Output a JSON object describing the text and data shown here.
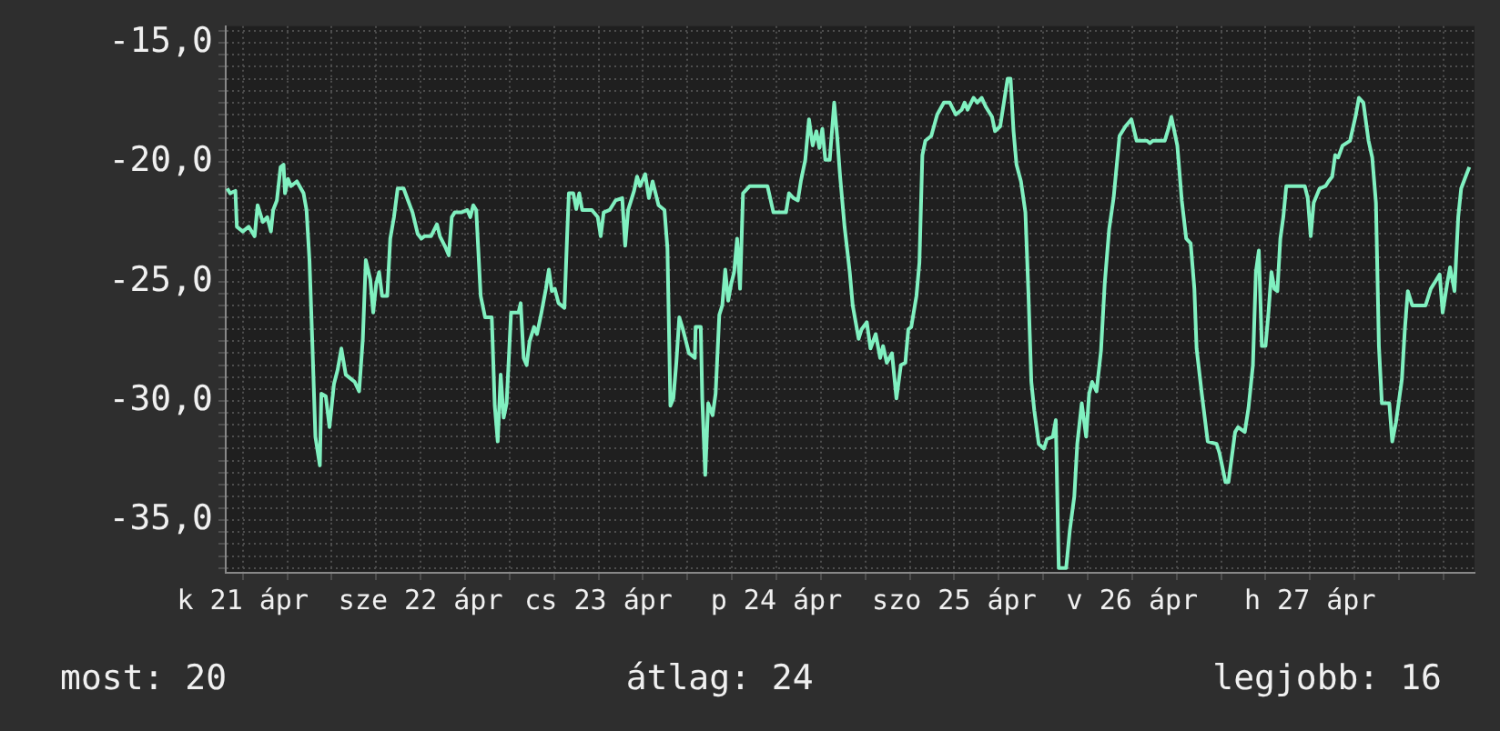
{
  "chart_data": {
    "type": "line",
    "legend": false,
    "grid": true,
    "marker": "none",
    "line_style": "solid",
    "annotations": [
      "most: 20",
      "átlag: 24",
      "legjobb: 16"
    ],
    "xlim": [
      "--04-21T09:42",
      "--04-28T10:12"
    ],
    "ylim": [
      -37.2,
      -14.3
    ],
    "xticks": [
      {
        "value": "--04-21T12:00",
        "label": "k 21 ápr"
      },
      {
        "value": "--04-21T18:00",
        "label": null
      },
      {
        "value": "--04-22T00:00",
        "label": null
      },
      {
        "value": "--04-22T06:00",
        "label": null
      },
      {
        "value": "--04-22T12:00",
        "label": "sze 22 ápr"
      },
      {
        "value": "--04-22T18:00",
        "label": null
      },
      {
        "value": "--04-23T00:00",
        "label": null
      },
      {
        "value": "--04-23T06:00",
        "label": null
      },
      {
        "value": "--04-23T12:00",
        "label": "cs 23 ápr"
      },
      {
        "value": "--04-23T18:00",
        "label": null
      },
      {
        "value": "--04-24T00:00",
        "label": null
      },
      {
        "value": "--04-24T06:00",
        "label": null
      },
      {
        "value": "--04-24T12:00",
        "label": "p 24 ápr"
      },
      {
        "value": "--04-24T18:00",
        "label": null
      },
      {
        "value": "--04-25T00:00",
        "label": null
      },
      {
        "value": "--04-25T06:00",
        "label": null
      },
      {
        "value": "--04-25T12:00",
        "label": "szo 25 ápr"
      },
      {
        "value": "--04-25T18:00",
        "label": null
      },
      {
        "value": "--04-26T00:00",
        "label": null
      },
      {
        "value": "--04-26T06:00",
        "label": null
      },
      {
        "value": "--04-26T12:00",
        "label": "v 26 ápr"
      },
      {
        "value": "--04-26T18:00",
        "label": null
      },
      {
        "value": "--04-27T00:00",
        "label": null
      },
      {
        "value": "--04-27T06:00",
        "label": null
      },
      {
        "value": "--04-27T12:00",
        "label": "h 27 ápr"
      },
      {
        "value": "--04-27T18:00",
        "label": null
      },
      {
        "value": "--04-28T00:00",
        "label": null
      },
      {
        "value": "--04-28T06:00",
        "label": null
      }
    ],
    "yticks": [
      {
        "value": -37,
        "label": null
      },
      {
        "value": -36.5,
        "label": null
      },
      {
        "value": -36,
        "label": null
      },
      {
        "value": -35.5,
        "label": null
      },
      {
        "value": -35,
        "label": "-35,0"
      },
      {
        "value": -34.5,
        "label": null
      },
      {
        "value": -34,
        "label": null
      },
      {
        "value": -33.5,
        "label": null
      },
      {
        "value": -33,
        "label": null
      },
      {
        "value": -32.5,
        "label": null
      },
      {
        "value": -32,
        "label": null
      },
      {
        "value": -31.5,
        "label": null
      },
      {
        "value": -31,
        "label": null
      },
      {
        "value": -30.5,
        "label": null
      },
      {
        "value": -30,
        "label": "-30,0"
      },
      {
        "value": -29.5,
        "label": null
      },
      {
        "value": -29,
        "label": null
      },
      {
        "value": -28.5,
        "label": null
      },
      {
        "value": -28,
        "label": null
      },
      {
        "value": -27.5,
        "label": null
      },
      {
        "value": -27,
        "label": null
      },
      {
        "value": -26.5,
        "label": null
      },
      {
        "value": -26,
        "label": null
      },
      {
        "value": -25.5,
        "label": null
      },
      {
        "value": -25,
        "label": "-25,0"
      },
      {
        "value": -24.5,
        "label": null
      },
      {
        "value": -24,
        "label": null
      },
      {
        "value": -23.5,
        "label": null
      },
      {
        "value": -23,
        "label": null
      },
      {
        "value": -22.5,
        "label": null
      },
      {
        "value": -22,
        "label": null
      },
      {
        "value": -21.5,
        "label": null
      },
      {
        "value": -21,
        "label": null
      },
      {
        "value": -20.5,
        "label": null
      },
      {
        "value": -20,
        "label": "-20,0"
      },
      {
        "value": -19.5,
        "label": null
      },
      {
        "value": -19,
        "label": null
      },
      {
        "value": -18.5,
        "label": null
      },
      {
        "value": -18,
        "label": null
      },
      {
        "value": -17.5,
        "label": null
      },
      {
        "value": -17,
        "label": null
      },
      {
        "value": -16.5,
        "label": null
      },
      {
        "value": -16,
        "label": null
      },
      {
        "value": -15.5,
        "label": null
      },
      {
        "value": -15,
        "label": "-15,0"
      },
      {
        "value": -14.5,
        "label": null
      }
    ],
    "x": [
      "--04-21T09:54",
      "--04-21T10:18",
      "--04-21T11:00",
      "--04-21T11:12",
      "--04-21T12:00",
      "--04-21T12:48",
      "--04-21T13:36",
      "--04-21T14:00",
      "--04-21T14:42",
      "--04-21T15:18",
      "--04-21T15:48",
      "--04-21T16:06",
      "--04-21T16:36",
      "--04-21T17:06",
      "--04-21T17:30",
      "--04-21T17:42",
      "--04-21T18:06",
      "--04-21T18:30",
      "--04-21T19:18",
      "--04-21T20:12",
      "--04-21T20:36",
      "--04-21T21:00",
      "--04-21T21:24",
      "--04-21T21:48",
      "--04-21T22:24",
      "--04-21T22:36",
      "--04-21T23:12",
      "--04-21T23:42",
      "--04-22T00:18",
      "--04-22T00:48",
      "--04-22T01:18",
      "--04-22T01:54",
      "--04-22T02:42",
      "--04-22T03:06",
      "--04-22T03:42",
      "--04-22T04:12",
      "--04-22T04:36",
      "--04-22T05:12",
      "--04-22T05:36",
      "--04-22T06:00",
      "--04-22T06:24",
      "--04-22T06:48",
      "--04-22T07:30",
      "--04-22T07:54",
      "--04-22T08:24",
      "--04-22T08:54",
      "--04-22T09:42",
      "--04-22T10:18",
      "--04-22T10:54",
      "--04-22T11:36",
      "--04-22T12:06",
      "--04-22T12:30",
      "--04-22T13:24",
      "--04-22T14:12",
      "--04-22T14:36",
      "--04-22T15:24",
      "--04-22T15:48",
      "--04-22T16:12",
      "--04-22T16:36",
      "--04-22T17:30",
      "--04-22T18:18",
      "--04-22T18:42",
      "--04-22T19:06",
      "--04-22T19:30",
      "--04-22T20:06",
      "--04-22T20:42",
      "--04-22T21:36",
      "--04-22T22:00",
      "--04-22T22:24",
      "--04-22T22:48",
      "--04-22T23:12",
      "--04-22T23:36",
      "--04-23T00:12",
      "--04-23T01:12",
      "--04-23T01:30",
      "--04-23T01:54",
      "--04-23T02:18",
      "--04-23T02:42",
      "--04-23T03:18",
      "--04-23T03:42",
      "--04-23T04:18",
      "--04-23T04:54",
      "--04-23T05:18",
      "--04-23T05:42",
      "--04-23T06:06",
      "--04-23T06:36",
      "--04-23T07:24",
      "--04-23T07:48",
      "--04-23T08:00",
      "--04-23T08:36",
      "--04-23T09:00",
      "--04-23T09:24",
      "--04-23T09:48",
      "--04-23T11:06",
      "--04-23T11:54",
      "--04-23T12:18",
      "--04-23T12:42",
      "--04-23T13:30",
      "--04-23T14:18",
      "--04-23T15:12",
      "--04-23T15:36",
      "--04-23T16:00",
      "--04-23T16:48",
      "--04-23T17:12",
      "--04-23T17:36",
      "--04-23T18:18",
      "--04-23T18:48",
      "--04-23T19:18",
      "--04-23T19:42",
      "--04-23T20:06",
      "--04-23T20:54",
      "--04-23T21:18",
      "--04-23T21:42",
      "--04-23T22:06",
      "--04-23T22:30",
      "--04-23T22:54",
      "--04-23T23:18",
      "--04-23T23:48",
      "--04-24T00:12",
      "--04-24T01:00",
      "--04-24T01:06",
      "--04-24T01:48",
      "--04-24T02:00",
      "--04-24T02:24",
      "--04-24T02:48",
      "--04-24T03:24",
      "--04-24T03:48",
      "--04-24T04:18",
      "--04-24T04:42",
      "--04-24T05:06",
      "--04-24T05:30",
      "--04-24T05:54",
      "--04-24T06:18",
      "--04-24T06:42",
      "--04-24T07:06",
      "--04-24T07:30",
      "--04-24T08:24",
      "--04-24T08:48",
      "--04-24T10:48",
      "--04-24T11:36",
      "--04-24T13:18",
      "--04-24T13:42",
      "--04-24T14:18",
      "--04-24T14:54",
      "--04-24T15:18",
      "--04-24T15:54",
      "--04-24T16:24",
      "--04-24T16:54",
      "--04-24T17:24",
      "--04-24T17:48",
      "--04-24T18:12",
      "--04-24T18:36",
      "--04-24T19:12",
      "--04-24T19:48",
      "--04-24T20:12",
      "--04-24T20:36",
      "--04-24T21:12",
      "--04-24T21:54",
      "--04-24T22:18",
      "--04-24T23:06",
      "--04-24T23:30",
      "--04-25T00:12",
      "--04-25T00:42",
      "--04-25T01:24",
      "--04-25T02:00",
      "--04-25T02:24",
      "--04-25T02:54",
      "--04-25T03:36",
      "--04-25T04:12",
      "--04-25T04:48",
      "--04-25T05:24",
      "--04-25T05:48",
      "--04-25T06:12",
      "--04-25T06:54",
      "--04-25T07:18",
      "--04-25T07:42",
      "--04-25T08:06",
      "--04-25T08:54",
      "--04-25T09:42",
      "--04-25T10:36",
      "--04-25T11:24",
      "--04-25T12:12",
      "--04-25T13:00",
      "--04-25T13:24",
      "--04-25T13:48",
      "--04-25T14:36",
      "--04-25T15:06",
      "--04-25T15:42",
      "--04-25T16:18",
      "--04-25T17:06",
      "--04-25T17:30",
      "--04-25T18:12",
      "--04-25T18:42",
      "--04-25T19:12",
      "--04-25T19:36",
      "--04-25T20:00",
      "--04-25T20:24",
      "--04-25T21:00",
      "--04-25T21:36",
      "--04-25T22:00",
      "--04-25T22:24",
      "--04-25T22:48",
      "--04-25T23:24",
      "--04-26T00:06",
      "--04-26T00:30",
      "--04-26T01:18",
      "--04-26T01:42",
      "--04-26T02:06",
      "--04-26T03:06",
      "--04-26T03:36",
      "--04-26T04:12",
      "--04-26T04:36",
      "--04-26T05:12",
      "--04-26T05:48",
      "--04-26T06:12",
      "--04-26T06:36",
      "--04-26T07:12",
      "--04-26T07:48",
      "--04-26T08:18",
      "--04-26T08:54",
      "--04-26T09:30",
      "--04-26T10:18",
      "--04-26T11:06",
      "--04-26T11:54",
      "--04-26T12:36",
      "--04-26T14:00",
      "--04-26T14:24",
      "--04-26T14:48",
      "--04-26T16:24",
      "--04-26T16:54",
      "--04-26T17:18",
      "--04-26T18:06",
      "--04-26T18:42",
      "--04-26T19:18",
      "--04-26T19:54",
      "--04-26T20:24",
      "--04-26T20:42",
      "--04-26T21:24",
      "--04-26T22:12",
      "--04-26T23:24",
      "--04-26T23:48",
      "--04-27T00:36",
      "--04-27T01:00",
      "--04-27T01:54",
      "--04-27T02:18",
      "--04-27T03:12",
      "--04-27T03:42",
      "--04-27T04:18",
      "--04-27T04:42",
      "--04-27T05:06",
      "--04-27T05:30",
      "--04-27T06:00",
      "--04-27T06:24",
      "--04-27T06:48",
      "--04-27T07:12",
      "--04-27T07:36",
      "--04-27T08:00",
      "--04-27T08:24",
      "--04-27T08:48",
      "--04-27T11:18",
      "--04-27T11:42",
      "--04-27T12:06",
      "--04-27T12:30",
      "--04-27T13:18",
      "--04-27T14:06",
      "--04-27T14:30",
      "--04-27T15:00",
      "--04-27T15:24",
      "--04-27T15:48",
      "--04-27T16:24",
      "--04-27T17:24",
      "--04-27T18:12",
      "--04-27T18:36",
      "--04-27T19:12",
      "--04-27T19:54",
      "--04-27T20:24",
      "--04-27T20:54",
      "--04-27T21:18",
      "--04-27T21:42",
      "--04-27T22:42",
      "--04-27T23:06",
      "--04-27T23:36",
      "--04-28T00:24",
      "--04-28T00:48",
      "--04-28T01:12",
      "--04-28T01:48",
      "--04-28T03:36",
      "--04-28T04:18",
      "--04-28T04:54",
      "--04-28T05:30",
      "--04-28T05:54",
      "--04-28T06:30",
      "--04-28T06:54",
      "--04-28T07:30",
      "--04-28T08:00",
      "--04-28T08:24",
      "--04-28T09:00",
      "--04-28T09:30"
    ],
    "series": [
      {
        "color": "#80f0c0",
        "values": [
          -21.1,
          -21.3,
          -21.2,
          -22.7,
          -22.9,
          -22.7,
          -23.1,
          -21.8,
          -22.5,
          -22.3,
          -22.9,
          -22.0,
          -21.6,
          -20.2,
          -20.1,
          -21.3,
          -20.7,
          -21.0,
          -20.8,
          -21.3,
          -22.0,
          -24.1,
          -27.7,
          -31.5,
          -32.7,
          -29.7,
          -29.8,
          -31.1,
          -29.3,
          -28.7,
          -27.8,
          -28.9,
          -29.1,
          -29.2,
          -29.6,
          -27.4,
          -24.1,
          -24.9,
          -26.3,
          -25.1,
          -24.6,
          -25.6,
          -25.6,
          -23.2,
          -22.3,
          -21.1,
          -21.1,
          -21.6,
          -22.1,
          -23.0,
          -23.2,
          -23.1,
          -23.1,
          -22.6,
          -23.1,
          -23.6,
          -23.9,
          -22.3,
          -22.1,
          -22.1,
          -22.0,
          -22.3,
          -21.8,
          -22.0,
          -25.6,
          -26.5,
          -26.5,
          -30.2,
          -31.7,
          -28.9,
          -30.7,
          -30.1,
          -26.3,
          -26.3,
          -25.9,
          -28.2,
          -28.5,
          -27.5,
          -26.9,
          -27.2,
          -26.3,
          -25.3,
          -24.5,
          -25.4,
          -25.3,
          -25.9,
          -26.1,
          -22.8,
          -21.3,
          -21.3,
          -21.96,
          -21.3,
          -22.0,
          -22.0,
          -22.3,
          -23.1,
          -22.1,
          -22.0,
          -21.6,
          -21.5,
          -23.5,
          -22.0,
          -21.2,
          -20.6,
          -21.0,
          -20.5,
          -21.5,
          -20.8,
          -21.3,
          -21.8,
          -22.0,
          -23.6,
          -30.2,
          -29.9,
          -28.4,
          -26.5,
          -26.9,
          -27.5,
          -28.0,
          -28.2,
          -26.9,
          -26.9,
          -29.9,
          -33.1,
          -30.1,
          -30.6,
          -29.7,
          -26.4,
          -26.0,
          -24.5,
          -25.8,
          -25.1,
          -24.6,
          -23.2,
          -25.3,
          -21.3,
          -21.0,
          -21.0,
          -21.0,
          -22.1,
          -22.1,
          -21.3,
          -21.5,
          -21.6,
          -20.8,
          -19.9,
          -18.2,
          -19.3,
          -18.7,
          -19.4,
          -18.6,
          -19.9,
          -19.9,
          -17.5,
          -18.9,
          -20.6,
          -22.7,
          -24.6,
          -26.0,
          -27.4,
          -27.0,
          -26.7,
          -27.8,
          -27.2,
          -28.2,
          -27.7,
          -28.4,
          -28.0,
          -29.9,
          -28.5,
          -28.4,
          -27.0,
          -26.9,
          -25.6,
          -24.2,
          -19.7,
          -19.1,
          -18.9,
          -18.0,
          -17.5,
          -17.5,
          -18.0,
          -17.8,
          -17.5,
          -17.8,
          -17.3,
          -17.5,
          -17.3,
          -17.7,
          -18.1,
          -18.7,
          -18.5,
          -17.5,
          -16.5,
          -16.5,
          -18.7,
          -20.1,
          -20.8,
          -22.1,
          -25.4,
          -29.2,
          -30.4,
          -31.8,
          -32.0,
          -31.6,
          -31.5,
          -30.8,
          -37.0,
          -37.0,
          -35.4,
          -34.0,
          -31.8,
          -30.1,
          -31.5,
          -29.7,
          -29.2,
          -29.6,
          -27.9,
          -25.1,
          -22.8,
          -21.5,
          -18.9,
          -18.5,
          -18.2,
          -19.1,
          -19.1,
          -19.2,
          -19.1,
          -19.1,
          -18.6,
          -18.1,
          -19.3,
          -21.6,
          -23.2,
          -23.4,
          -25.3,
          -27.8,
          -29.7,
          -31.7,
          -31.8,
          -32.2,
          -33.4,
          -33.4,
          -31.3,
          -31.1,
          -31.3,
          -30.3,
          -28.5,
          -24.6,
          -23.7,
          -27.7,
          -27.7,
          -26.3,
          -24.6,
          -25.3,
          -25.4,
          -23.2,
          -22.3,
          -21.0,
          -21.0,
          -21.5,
          -23.1,
          -21.7,
          -21.1,
          -21.0,
          -20.8,
          -20.6,
          -19.7,
          -19.8,
          -19.3,
          -19.1,
          -18.0,
          -17.3,
          -17.5,
          -19.1,
          -19.8,
          -21.7,
          -27.7,
          -30.1,
          -30.1,
          -31.7,
          -30.9,
          -29.1,
          -27.0,
          -25.4,
          -26.0,
          -26.0,
          -25.3,
          -25.0,
          -24.7,
          -26.3,
          -25.1,
          -24.4,
          -25.4,
          -22.3,
          -21.1,
          -20.6,
          -20.2
        ]
      }
    ]
  }
}
